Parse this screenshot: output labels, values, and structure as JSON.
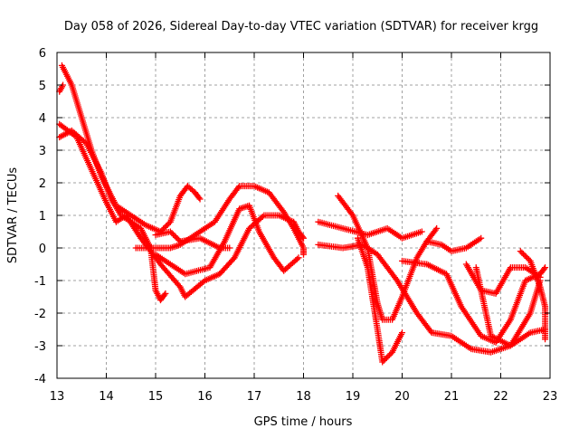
{
  "chart_data": {
    "type": "scatter",
    "title": "Day 058 of 2026, Sidereal Day-to-day VTEC variation (SDTVAR) for receiver krgg",
    "xlabel": "GPS time / hours",
    "ylabel": "SDTVAR / TECUs",
    "xlim": [
      13,
      23
    ],
    "ylim": [
      -4,
      6
    ],
    "xticks": [
      13,
      14,
      15,
      16,
      17,
      18,
      19,
      20,
      21,
      22,
      23
    ],
    "yticks": [
      -4,
      -3,
      -2,
      -1,
      0,
      1,
      2,
      3,
      4,
      5,
      6
    ],
    "grid": true,
    "marker": "plus",
    "color": "#ff0000",
    "note": "series are traced tracks of densely-sampled points (x in hours, y in TECU)",
    "series": [
      {
        "name": "track-a",
        "points": [
          [
            13.1,
            5.6
          ],
          [
            13.3,
            5.0
          ],
          [
            13.5,
            4.0
          ],
          [
            13.7,
            3.0
          ],
          [
            13.9,
            2.2
          ],
          [
            14.2,
            1.3
          ],
          [
            14.5,
            1.0
          ],
          [
            14.8,
            0.7
          ],
          [
            15.1,
            0.5
          ],
          [
            15.3,
            0.8
          ],
          [
            15.5,
            1.6
          ],
          [
            15.65,
            1.9
          ],
          [
            15.8,
            1.7
          ],
          [
            15.9,
            1.5
          ]
        ]
      },
      {
        "name": "track-a2",
        "points": [
          [
            13.05,
            4.8
          ],
          [
            13.12,
            5.0
          ]
        ]
      },
      {
        "name": "track-b",
        "points": [
          [
            13.05,
            3.4
          ],
          [
            13.3,
            3.6
          ],
          [
            13.6,
            3.2
          ],
          [
            13.9,
            2.3
          ],
          [
            14.1,
            1.5
          ],
          [
            14.3,
            1.0
          ],
          [
            14.7,
            0.6
          ],
          [
            14.9,
            0.0
          ],
          [
            15.0,
            -1.3
          ],
          [
            15.1,
            -1.6
          ],
          [
            15.2,
            -1.4
          ]
        ]
      },
      {
        "name": "track-c",
        "points": [
          [
            13.05,
            3.8
          ],
          [
            13.4,
            3.4
          ],
          [
            13.7,
            2.4
          ],
          [
            14.0,
            1.4
          ],
          [
            14.2,
            0.8
          ],
          [
            14.4,
            1.0
          ],
          [
            14.7,
            0.3
          ],
          [
            15.1,
            -0.5
          ],
          [
            15.5,
            -1.2
          ],
          [
            15.6,
            -1.5
          ],
          [
            16.0,
            -1.0
          ],
          [
            16.3,
            -0.8
          ],
          [
            16.6,
            -0.3
          ],
          [
            16.9,
            0.6
          ],
          [
            17.2,
            1.0
          ],
          [
            17.5,
            1.0
          ],
          [
            17.8,
            0.8
          ],
          [
            17.9,
            0.5
          ],
          [
            18.0,
            0.3
          ]
        ]
      },
      {
        "name": "track-d",
        "points": [
          [
            14.6,
            0.0
          ],
          [
            15.0,
            0.0
          ],
          [
            15.3,
            0.0
          ],
          [
            15.5,
            0.1
          ],
          [
            15.8,
            0.4
          ],
          [
            16.2,
            0.8
          ],
          [
            16.5,
            1.5
          ],
          [
            16.7,
            1.9
          ],
          [
            17.0,
            1.9
          ],
          [
            17.3,
            1.7
          ],
          [
            17.6,
            1.1
          ],
          [
            17.8,
            0.6
          ],
          [
            18.0,
            0.0
          ],
          [
            18.0,
            -0.2
          ]
        ]
      },
      {
        "name": "track-e",
        "points": [
          [
            15.0,
            0.4
          ],
          [
            15.3,
            0.5
          ],
          [
            15.5,
            0.2
          ],
          [
            15.9,
            0.3
          ],
          [
            16.3,
            0.0
          ],
          [
            16.5,
            0.0
          ]
        ]
      },
      {
        "name": "track-f",
        "points": [
          [
            15.0,
            -0.2
          ],
          [
            15.6,
            -0.8
          ],
          [
            16.1,
            -0.6
          ],
          [
            16.4,
            0.2
          ],
          [
            16.7,
            1.2
          ],
          [
            16.9,
            1.3
          ],
          [
            17.1,
            0.5
          ],
          [
            17.4,
            -0.3
          ],
          [
            17.6,
            -0.7
          ],
          [
            17.9,
            -0.3
          ]
        ]
      },
      {
        "name": "track-g",
        "points": [
          [
            18.3,
            0.8
          ],
          [
            18.8,
            0.6
          ],
          [
            19.3,
            0.4
          ],
          [
            19.7,
            0.6
          ],
          [
            20.0,
            0.3
          ],
          [
            20.4,
            0.5
          ]
        ]
      },
      {
        "name": "track-h",
        "points": [
          [
            18.3,
            0.1
          ],
          [
            18.8,
            0.0
          ],
          [
            19.2,
            0.1
          ],
          [
            19.5,
            -0.2
          ],
          [
            19.9,
            -1.0
          ],
          [
            20.3,
            -2.0
          ],
          [
            20.6,
            -2.6
          ],
          [
            21.0,
            -2.7
          ],
          [
            21.4,
            -3.1
          ],
          [
            21.8,
            -3.2
          ],
          [
            22.2,
            -3.0
          ],
          [
            22.6,
            -2.6
          ],
          [
            22.9,
            -2.5
          ]
        ]
      },
      {
        "name": "track-i",
        "points": [
          [
            18.7,
            1.6
          ],
          [
            19.0,
            1.0
          ],
          [
            19.3,
            0.0
          ],
          [
            19.5,
            -1.7
          ],
          [
            19.6,
            -2.2
          ],
          [
            19.8,
            -2.2
          ],
          [
            20.0,
            -1.5
          ],
          [
            20.3,
            -0.3
          ],
          [
            20.5,
            0.2
          ],
          [
            20.7,
            0.6
          ]
        ]
      },
      {
        "name": "track-j",
        "points": [
          [
            19.1,
            0.3
          ],
          [
            19.3,
            -0.6
          ],
          [
            19.5,
            -2.5
          ],
          [
            19.6,
            -3.5
          ],
          [
            19.8,
            -3.2
          ],
          [
            20.0,
            -2.6
          ]
        ]
      },
      {
        "name": "track-k",
        "points": [
          [
            20.0,
            -0.4
          ],
          [
            20.5,
            -0.5
          ],
          [
            20.9,
            -0.8
          ],
          [
            21.2,
            -1.8
          ],
          [
            21.6,
            -2.7
          ],
          [
            21.9,
            -2.9
          ],
          [
            22.2,
            -2.2
          ],
          [
            22.5,
            -1.0
          ],
          [
            22.8,
            -0.8
          ],
          [
            22.9,
            -0.6
          ]
        ]
      },
      {
        "name": "track-l",
        "points": [
          [
            20.5,
            0.2
          ],
          [
            20.8,
            0.1
          ],
          [
            21.0,
            -0.1
          ],
          [
            21.3,
            0.0
          ],
          [
            21.6,
            0.3
          ]
        ]
      },
      {
        "name": "track-m",
        "points": [
          [
            21.3,
            -0.5
          ],
          [
            21.6,
            -1.3
          ],
          [
            21.9,
            -1.4
          ],
          [
            22.2,
            -0.6
          ],
          [
            22.5,
            -0.6
          ],
          [
            22.8,
            -0.9
          ]
        ]
      },
      {
        "name": "track-n",
        "points": [
          [
            21.5,
            -0.6
          ],
          [
            21.8,
            -2.7
          ],
          [
            22.2,
            -3.0
          ],
          [
            22.6,
            -2.0
          ],
          [
            22.8,
            -1.0
          ]
        ]
      },
      {
        "name": "track-o",
        "points": [
          [
            22.4,
            -0.1
          ],
          [
            22.6,
            -0.4
          ],
          [
            22.8,
            -1.2
          ],
          [
            22.9,
            -1.8
          ],
          [
            22.9,
            -2.8
          ]
        ]
      }
    ]
  }
}
